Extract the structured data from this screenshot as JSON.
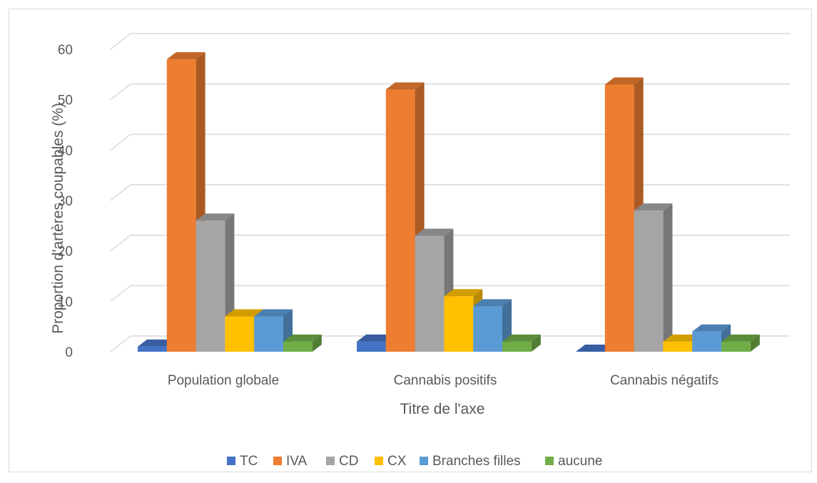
{
  "chart_data": {
    "type": "bar",
    "title": "",
    "xlabel": "Titre de l'axe",
    "ylabel": "Proportion d'artères coupables (%)",
    "ylim": [
      0,
      60
    ],
    "yticks": [
      "0",
      "10",
      "20",
      "30",
      "40",
      "50",
      "60"
    ],
    "grid": true,
    "legend_position": "bottom",
    "categories": [
      "Population globale",
      "Cannabis positifs",
      "Cannabis négatifs"
    ],
    "series": [
      {
        "name": "TC",
        "color": "#4472C4",
        "values": [
          1,
          2,
          0
        ]
      },
      {
        "name": "IVA",
        "color": "#ED7D31",
        "values": [
          58,
          52,
          53
        ]
      },
      {
        "name": "CD",
        "color": "#A5A5A5",
        "values": [
          26,
          23,
          28
        ]
      },
      {
        "name": "CX",
        "color": "#FFC000",
        "values": [
          7,
          11,
          2
        ]
      },
      {
        "name": "Branches filles",
        "color": "#5B9BD5",
        "values": [
          7,
          9,
          4
        ]
      },
      {
        "name": "aucune",
        "color": "#70AD47",
        "values": [
          2,
          2,
          2
        ]
      }
    ]
  }
}
